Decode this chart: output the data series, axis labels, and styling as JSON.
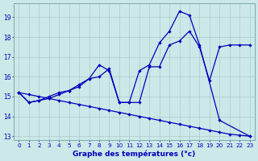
{
  "xlabel": "Graphe des températures (°c)",
  "background_color": "#cce8e8",
  "grid_color": "#aacccc",
  "line_color": "#0000bb",
  "xlim": [
    -0.5,
    23.5
  ],
  "ylim": [
    12.8,
    19.7
  ],
  "yticks": [
    13,
    14,
    15,
    16,
    17,
    18,
    19
  ],
  "xticks": [
    0,
    1,
    2,
    3,
    4,
    5,
    6,
    7,
    8,
    9,
    10,
    11,
    12,
    13,
    14,
    15,
    16,
    17,
    18,
    19,
    20,
    21,
    22,
    23
  ],
  "series": [
    {
      "x": [
        0,
        1,
        2,
        3,
        4,
        5,
        6,
        7,
        8,
        9,
        10,
        11,
        12,
        13,
        14,
        15,
        16,
        17,
        18,
        20,
        23
      ],
      "y": [
        15.2,
        14.7,
        14.8,
        14.9,
        15.1,
        15.3,
        15.5,
        15.9,
        16.6,
        16.3,
        14.7,
        14.7,
        16.3,
        16.6,
        17.7,
        18.3,
        19.3,
        19.1,
        17.6,
        13.8,
        13.0
      ]
    },
    {
      "x": [
        0,
        1,
        2,
        3,
        4,
        5,
        6,
        7,
        8,
        9,
        10,
        11,
        12,
        13,
        14,
        15,
        16,
        17,
        18,
        19,
        20,
        21,
        22,
        23
      ],
      "y": [
        15.2,
        14.7,
        14.8,
        15.0,
        15.2,
        15.3,
        15.6,
        15.9,
        16.0,
        16.4,
        14.7,
        14.7,
        14.7,
        16.5,
        16.5,
        17.6,
        17.8,
        18.3,
        17.5,
        15.8,
        17.5,
        17.6,
        17.6,
        17.6
      ]
    },
    {
      "x": [
        0,
        1,
        2,
        3,
        4,
        5,
        6,
        7,
        8,
        9,
        10,
        11,
        12,
        13,
        14,
        15,
        16,
        17,
        18,
        19,
        20,
        21,
        22,
        23
      ],
      "y": [
        15.2,
        15.1,
        15.0,
        14.9,
        14.8,
        14.7,
        14.6,
        14.5,
        14.4,
        14.3,
        14.2,
        14.1,
        14.0,
        13.9,
        13.8,
        13.7,
        13.6,
        13.5,
        13.4,
        13.3,
        13.2,
        13.1,
        13.05,
        13.0
      ]
    }
  ]
}
